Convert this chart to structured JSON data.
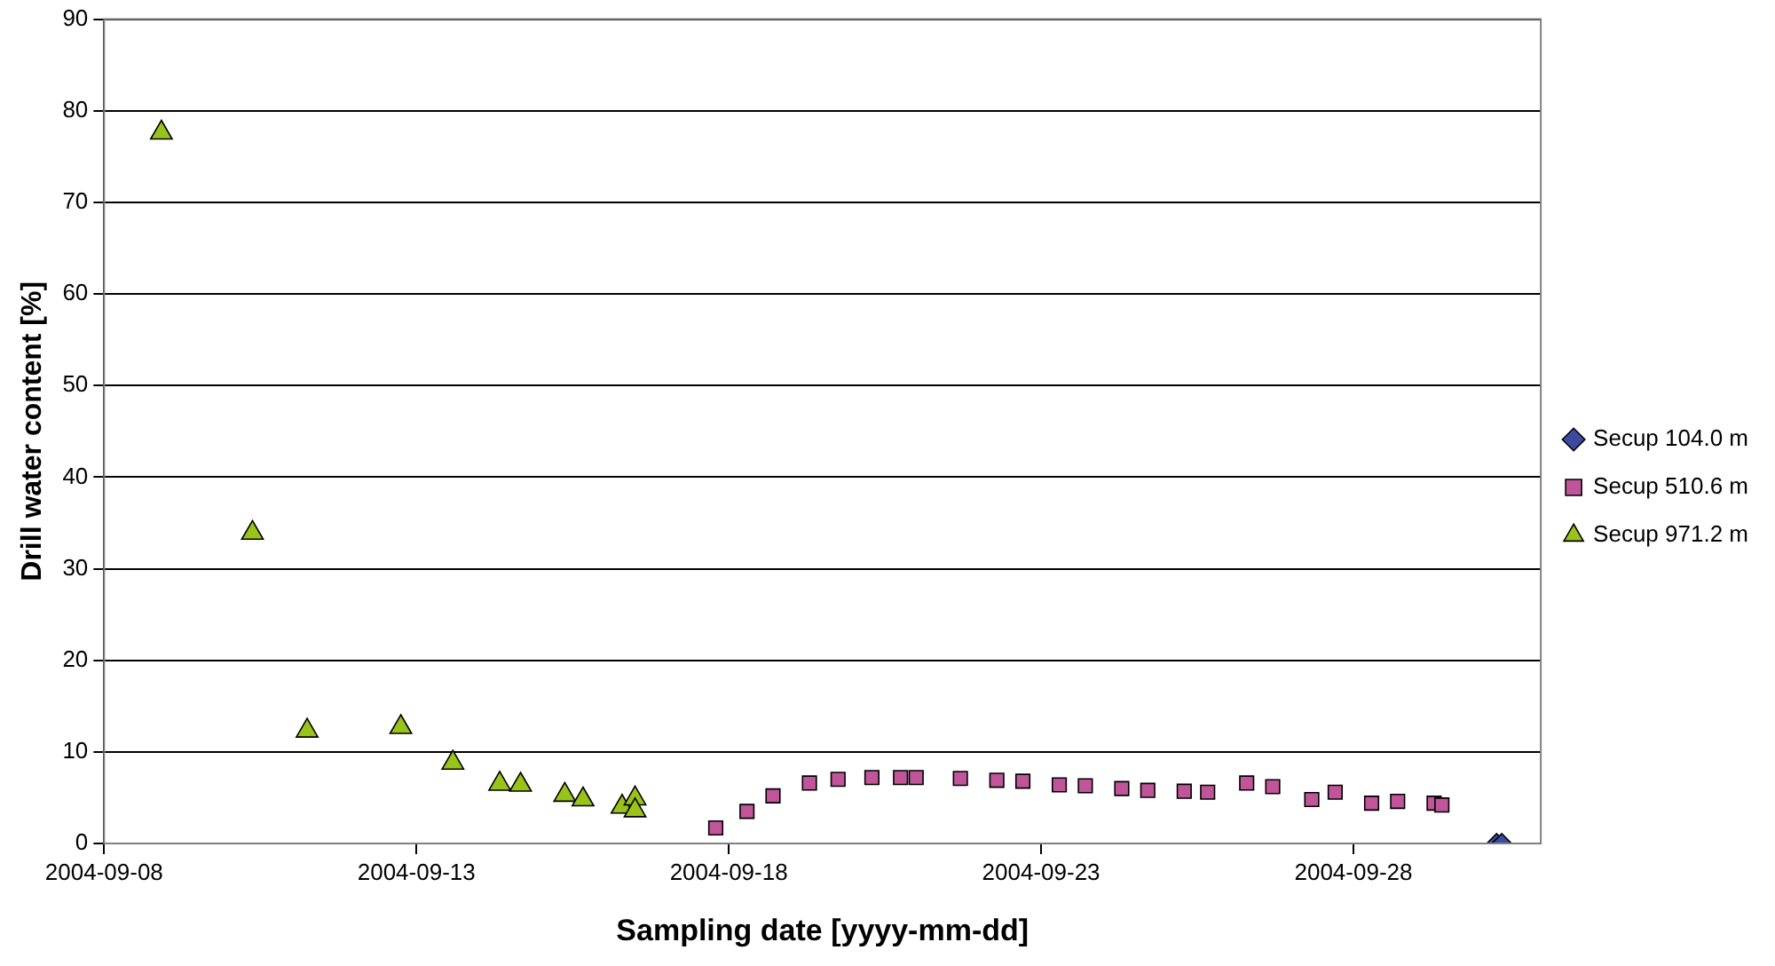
{
  "chart_data": {
    "type": "scatter",
    "xlabel": "Sampling date [yyyy-mm-dd]",
    "ylabel": "Drill water content [%]",
    "xlim": [
      "2004-09-08",
      "2004-10-01"
    ],
    "xticks": [
      "2004-09-08",
      "2004-09-13",
      "2004-09-18",
      "2004-09-23",
      "2004-09-28"
    ],
    "ylim": [
      0,
      90
    ],
    "yticks": [
      0,
      10,
      20,
      30,
      40,
      50,
      60,
      70,
      80,
      90
    ],
    "grid": "y",
    "legend": "right",
    "series": [
      {
        "name": "Secup 104.0 m",
        "color": "#3c4ba0",
        "marker": "diamond",
        "x": [
          "2004-09-30T07:00",
          "2004-09-30T09:00"
        ],
        "values": [
          0,
          0
        ]
      },
      {
        "name": "Secup 510.6 m",
        "color": "#c05599",
        "marker": "square",
        "x": [
          "2004-09-17T19:00",
          "2004-09-18T07:00",
          "2004-09-18T17:00",
          "2004-09-19T07:00",
          "2004-09-19T18:00",
          "2004-09-20T07:00",
          "2004-09-20T18:00",
          "2004-09-21T00:00",
          "2004-09-21T17:00",
          "2004-09-22T07:00",
          "2004-09-22T17:00",
          "2004-09-23T07:00",
          "2004-09-23T17:00",
          "2004-09-24T07:00",
          "2004-09-24T17:00",
          "2004-09-25T07:00",
          "2004-09-25T16:00",
          "2004-09-26T07:00",
          "2004-09-26T17:00",
          "2004-09-27T08:00",
          "2004-09-27T17:00",
          "2004-09-28T07:00",
          "2004-09-28T17:00",
          "2004-09-29T07:00",
          "2004-09-29T10:00"
        ],
        "values": [
          1.7,
          3.5,
          5.2,
          6.6,
          7.0,
          7.2,
          7.2,
          7.2,
          7.1,
          6.9,
          6.8,
          6.4,
          6.3,
          6.0,
          5.8,
          5.7,
          5.6,
          6.6,
          6.2,
          4.8,
          5.6,
          4.4,
          4.6,
          4.4,
          4.2
        ]
      },
      {
        "name": "Secup 971.2 m",
        "color": "#99c21a",
        "marker": "triangle",
        "x": [
          "2004-09-08T22:00",
          "2004-09-10T09:00",
          "2004-09-11T06:00",
          "2004-09-12T18:00",
          "2004-09-13T14:00",
          "2004-09-14T08:00",
          "2004-09-14T16:00",
          "2004-09-15T09:00",
          "2004-09-15T16:00",
          "2004-09-16T07:00",
          "2004-09-16T12:00",
          "2004-09-16T12:00"
        ],
        "values": [
          77.6,
          33.9,
          12.3,
          12.7,
          8.8,
          6.5,
          6.4,
          5.3,
          4.8,
          4.0,
          4.9,
          3.6
        ]
      }
    ]
  }
}
